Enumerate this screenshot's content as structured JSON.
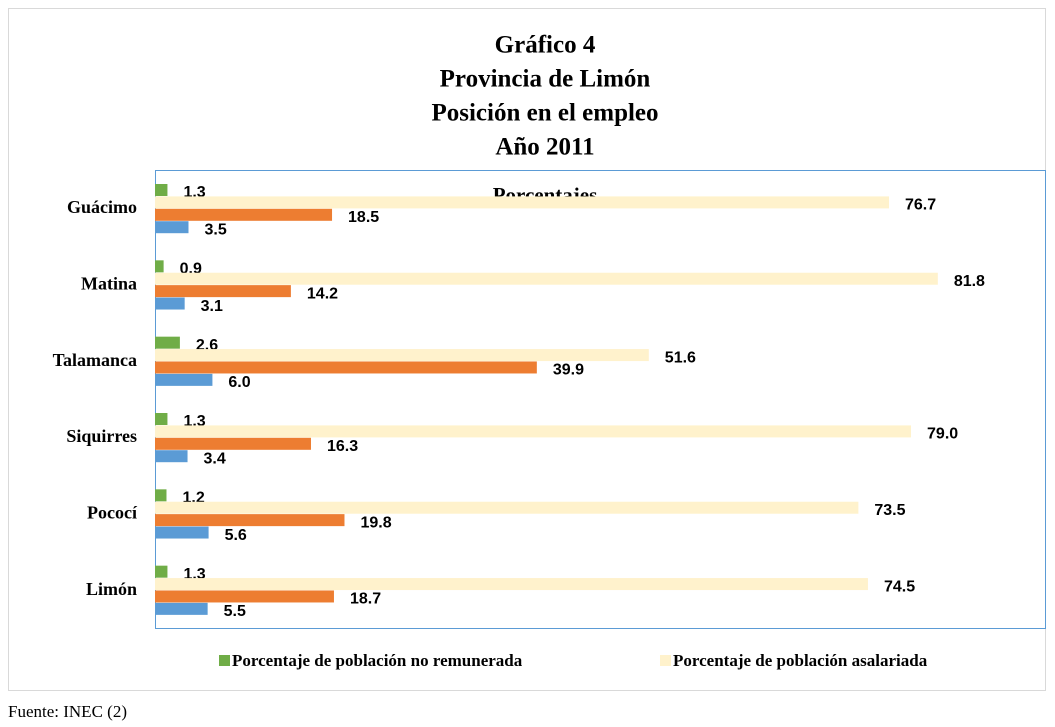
{
  "chart_data": {
    "type": "hbar",
    "title": [
      "Gráfico 4",
      "Provincia de Limón",
      "Posición en el empleo",
      "Año 2011"
    ],
    "subtitle": "Porcentajes",
    "categories": [
      "Guácimo",
      "Matina",
      "Talamanca",
      "Siquirres",
      "Pococí",
      "Limón"
    ],
    "series": [
      {
        "name": "Porcentaje de población no remunerada",
        "color": "#70ad47",
        "values": [
          1.3,
          0.9,
          2.6,
          1.3,
          1.2,
          1.3
        ],
        "value_labels": [
          "1.3",
          "0.9",
          "2.6",
          "1.3",
          "1.2",
          "1.3"
        ]
      },
      {
        "name": "Porcentaje de población asalariada",
        "color": "#fff2cc",
        "values": [
          76.7,
          81.8,
          51.6,
          79.0,
          73.5,
          74.5
        ],
        "value_labels": [
          "76.7",
          "81.8",
          "51.6",
          "79.0",
          "73.5",
          "74.5"
        ]
      },
      {
        "color": "#ed7d31",
        "values": [
          18.5,
          14.2,
          39.9,
          16.3,
          19.8,
          18.7
        ],
        "value_labels": [
          "18.5",
          "14.2",
          "39.9",
          "16.3",
          "19.8",
          "18.7"
        ]
      },
      {
        "color": "#5b9bd5",
        "values": [
          3.5,
          3.1,
          6.0,
          3.4,
          5.6,
          5.5
        ],
        "value_labels": [
          "3.5",
          "3.1",
          "6.0",
          "3.4",
          "5.6",
          "5.5"
        ]
      }
    ],
    "xlim": [
      0,
      93
    ],
    "source": "Fuente: INEC (2)"
  }
}
